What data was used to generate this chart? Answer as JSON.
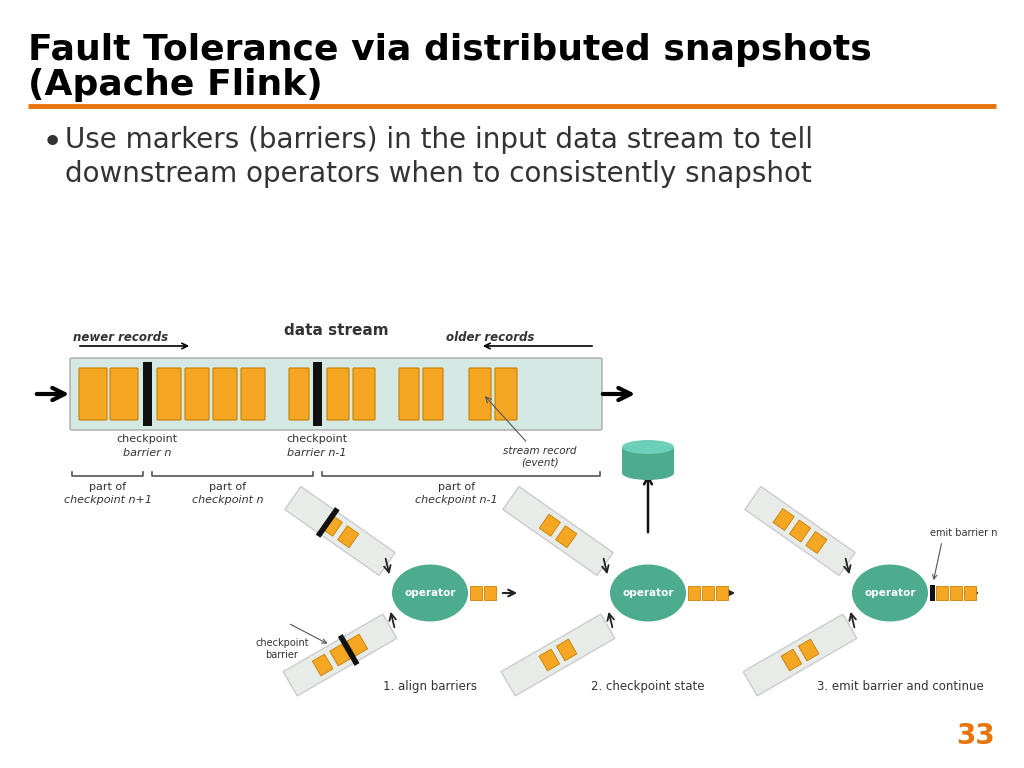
{
  "title_line1": "Fault Tolerance via distributed snapshots",
  "title_line2": "(Apache Flink)",
  "title_color": "#000000",
  "title_fontsize": 26,
  "orange_line_color": "#E8740C",
  "bullet_text_line1": "Use markers (barriers) in the input data stream to tell",
  "bullet_text_line2": "downstream operators when to consistently snapshot",
  "bullet_fontsize": 20,
  "stream_bg_color": "#d4e8e4",
  "barrier_color": "#111111",
  "record_color": "#f5a623",
  "operator_color": "#4dab8e",
  "operator_text_color": "#ffffff",
  "pipe_facecolor": "#e8ece8",
  "pipe_edgecolor": "#cccccc",
  "arrow_color": "#222222",
  "page_number": "33",
  "page_num_color": "#E8740C",
  "background_color": "#ffffff",
  "label_color": "#333333",
  "label_italic_color": "#333333"
}
